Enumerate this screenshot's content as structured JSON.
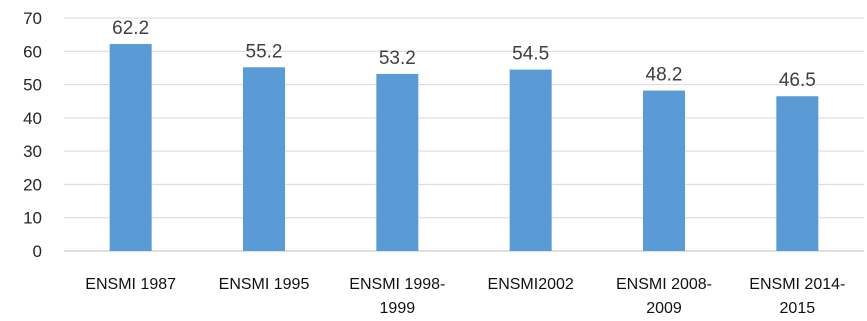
{
  "chart_data": {
    "type": "bar",
    "title": "",
    "xlabel": "",
    "ylabel": "",
    "categories": [
      [
        "ENSMI 1987"
      ],
      [
        "ENSMI 1995"
      ],
      [
        "ENSMI 1998-",
        "1999"
      ],
      [
        "ENSMI2002"
      ],
      [
        "ENSMI 2008-",
        "2009"
      ],
      [
        "ENSMI 2014-",
        "2015"
      ]
    ],
    "values": [
      62.2,
      55.2,
      53.2,
      54.5,
      48.2,
      46.5
    ],
    "value_labels": [
      "62.2",
      "55.2",
      "53.2",
      "54.5",
      "48.2",
      "46.5"
    ],
    "ylim": [
      0,
      70
    ],
    "yticks": [
      0,
      10,
      20,
      30,
      40,
      50,
      60,
      70
    ],
    "grid": true,
    "legend": "none",
    "bar_color": "#5b9bd5"
  }
}
